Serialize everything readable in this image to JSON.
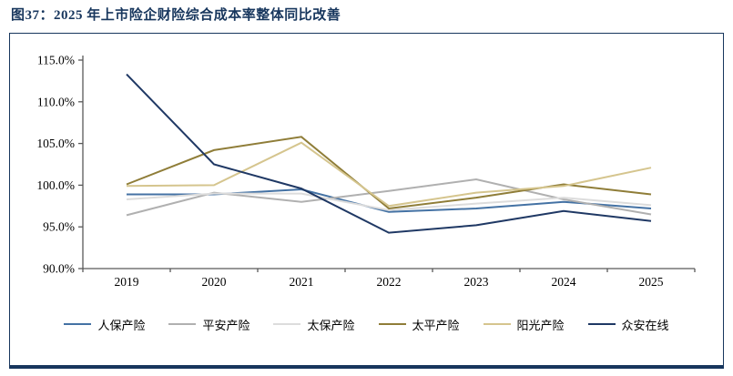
{
  "figure": {
    "title": "图37：2025 年上市险企财险综合成本率整体同比改善"
  },
  "colors": {
    "title": "#17365d",
    "panel_border": "#17365d",
    "axis": "#595959",
    "tick_text": "#000000"
  },
  "chart_data": {
    "type": "line",
    "title": "",
    "xlabel": "",
    "ylabel": "",
    "x": [
      "2019",
      "2020",
      "2021",
      "2022",
      "2023",
      "2024",
      "2025"
    ],
    "ylim": [
      90,
      115
    ],
    "ytick_values": [
      115,
      110,
      105,
      100,
      95,
      90
    ],
    "yticks": [
      "115.0%",
      "110.0%",
      "105.0%",
      "100.0%",
      "95.0%",
      "90.0%"
    ],
    "grid": false,
    "legend_position": "bottom",
    "series": [
      {
        "name": "人保产险",
        "color": "#4472a4",
        "values": [
          98.9,
          98.9,
          99.5,
          96.8,
          97.2,
          98.0,
          97.2
        ]
      },
      {
        "name": "平安产险",
        "color": "#b0b0b0",
        "values": [
          96.4,
          99.1,
          98.0,
          99.3,
          100.7,
          98.3,
          96.5
        ]
      },
      {
        "name": "太保产险",
        "color": "#dcdcdc",
        "values": [
          98.3,
          99.0,
          99.0,
          97.0,
          97.8,
          98.5,
          97.6
        ]
      },
      {
        "name": "太平产险",
        "color": "#8f7d38",
        "values": [
          100.1,
          104.2,
          105.8,
          97.2,
          98.5,
          100.1,
          98.9
        ]
      },
      {
        "name": "阳光产险",
        "color": "#d5c58e",
        "values": [
          99.9,
          100.0,
          105.1,
          97.5,
          99.1,
          99.9,
          102.1
        ]
      },
      {
        "name": "众安在线",
        "color": "#1f3864",
        "values": [
          113.3,
          102.5,
          99.6,
          94.3,
          95.2,
          96.9,
          95.7
        ]
      }
    ]
  }
}
